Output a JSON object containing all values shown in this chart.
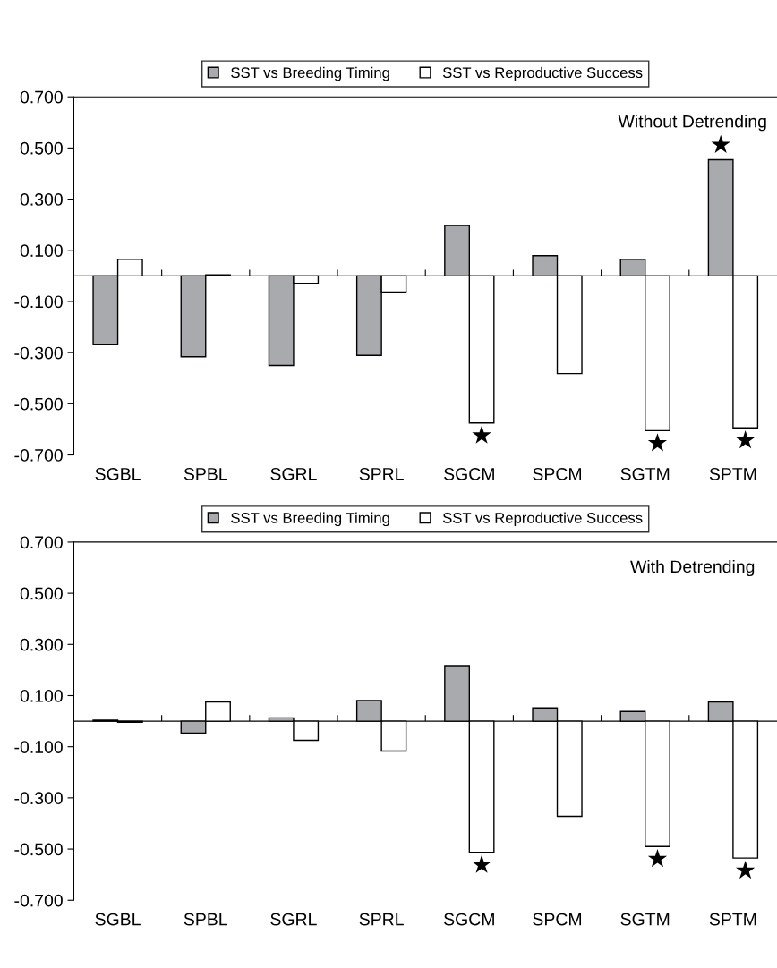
{
  "chart_data": [
    {
      "type": "bar",
      "categories": [
        "SGBL",
        "SPBL",
        "SGRL",
        "SPRL",
        "SGCM",
        "SPCM",
        "SGTM",
        "SPTM"
      ],
      "series": [
        {
          "name": "SST vs Breeding Timing",
          "color": "#a9aaad",
          "values": [
            -0.269,
            -0.316,
            -0.35,
            -0.311,
            0.197,
            0.079,
            0.065,
            0.454
          ]
        },
        {
          "name": "SST vs Reproductive Success",
          "color": "#ffffff",
          "values": [
            0.065,
            0.004,
            -0.029,
            -0.063,
            -0.575,
            -0.382,
            -0.605,
            -0.594
          ]
        }
      ],
      "ylim": [
        -0.7,
        0.7
      ],
      "yticks": [
        {
          "value": -0.7,
          "label": "-0.700"
        },
        {
          "value": -0.5,
          "label": "-0.500"
        },
        {
          "value": -0.3,
          "label": "-0.300"
        },
        {
          "value": -0.1,
          "label": "-0.100"
        },
        {
          "value": 0.1,
          "label": "0.100"
        },
        {
          "value": 0.3,
          "label": "0.300"
        },
        {
          "value": 0.5,
          "label": "0.500"
        },
        {
          "value": 0.7,
          "label": "0.700"
        }
      ],
      "legend": "top",
      "annotations": [
        "Without Detrending",
        {
          "text": "★",
          "x": "SPTM",
          "y": 0.454
        },
        {
          "text": "★",
          "x": "SGCM",
          "y": -0.575
        },
        {
          "text": "★",
          "x": "SGTM",
          "y": -0.605
        },
        {
          "text": "★",
          "x": "SPTM",
          "y": -0.594
        }
      ]
    },
    {
      "type": "bar",
      "categories": [
        "SGBL",
        "SPBL",
        "SGRL",
        "SPRL",
        "SGCM",
        "SPCM",
        "SGTM",
        "SPTM"
      ],
      "series": [
        {
          "name": "SST vs Breeding Timing",
          "color": "#a9aaad",
          "values": [
            0.004,
            -0.047,
            0.013,
            0.081,
            0.217,
            0.052,
            0.038,
            0.075
          ]
        },
        {
          "name": "SST vs Reproductive Success",
          "color": "#ffffff",
          "values": [
            -0.004,
            0.075,
            -0.075,
            -0.117,
            -0.513,
            -0.372,
            -0.49,
            -0.535
          ]
        }
      ],
      "ylim": [
        -0.7,
        0.7
      ],
      "yticks": [
        {
          "value": -0.7,
          "label": "-0.700"
        },
        {
          "value": -0.5,
          "label": "-0.500"
        },
        {
          "value": -0.3,
          "label": "-0.300"
        },
        {
          "value": -0.1,
          "label": "-0.100"
        },
        {
          "value": 0.1,
          "label": "0.100"
        },
        {
          "value": 0.3,
          "label": "0.300"
        },
        {
          "value": 0.5,
          "label": "0.500"
        },
        {
          "value": 0.7,
          "label": "0.700"
        }
      ],
      "legend": "top",
      "annotations": [
        "With Detrending",
        {
          "text": "★",
          "x": "SGCM",
          "y": -0.513
        },
        {
          "text": "★",
          "x": "SGTM",
          "y": -0.49
        },
        {
          "text": "★",
          "x": "SPTM",
          "y": -0.535
        }
      ]
    }
  ]
}
